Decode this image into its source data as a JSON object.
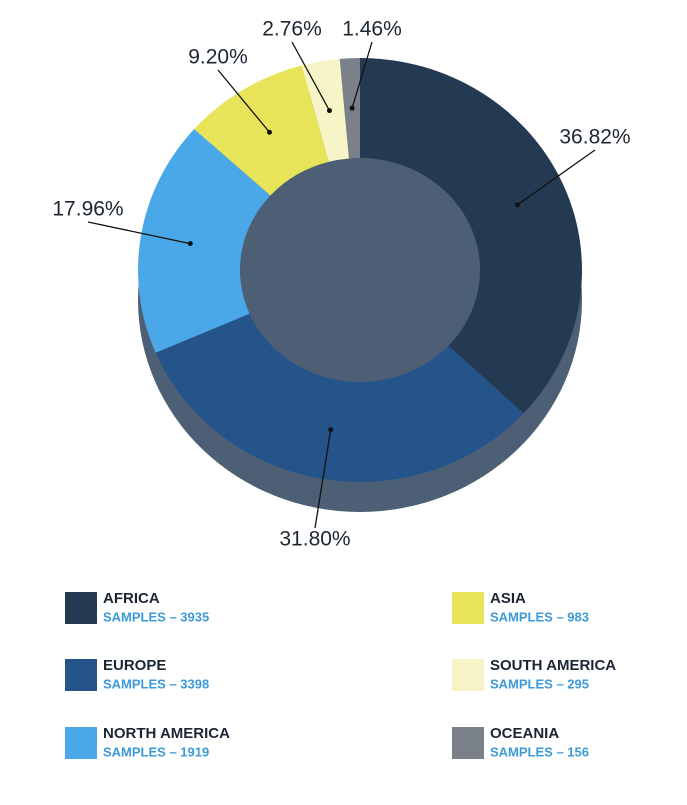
{
  "chart_data": {
    "type": "donut",
    "categories": [
      "AFRICA",
      "EUROPE",
      "NORTH AMERICA",
      "ASIA",
      "SOUTH AMERICA",
      "OCEANIA"
    ],
    "values": [
      36.82,
      31.8,
      17.96,
      9.2,
      2.76,
      1.46
    ],
    "value_labels": [
      "36.82%",
      "31.80%",
      "17.96%",
      "9.20%",
      "2.76%",
      "1.46%"
    ],
    "sample_labels": [
      "SAMPLES – 3935",
      "SAMPLES – 3398",
      "SAMPLES – 1919",
      "SAMPLES – 983",
      "SAMPLES – 295",
      "SAMPLES – 156"
    ],
    "colors": [
      "#243a52",
      "#25548a",
      "#4aa8e8",
      "#e8e45a",
      "#f7f5c8",
      "#7a8088"
    ]
  }
}
